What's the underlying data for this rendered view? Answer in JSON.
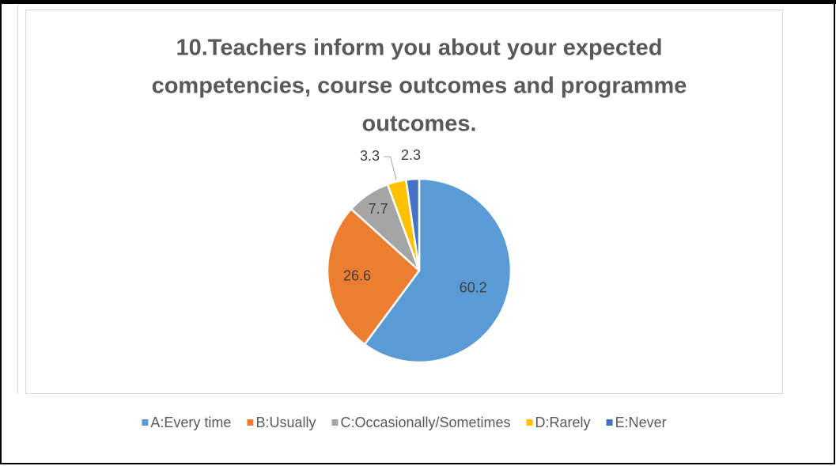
{
  "chart_data": {
    "type": "pie",
    "title": [
      "10.Teachers inform you about your expected",
      "competencies, course outcomes and programme",
      "outcomes."
    ],
    "categories": [
      "A:Every time",
      "B:Usually",
      "C:Occasionally/Sometimes",
      "D:Rarely",
      "E:Never"
    ],
    "values": [
      60.2,
      26.6,
      7.7,
      3.3,
      2.3
    ],
    "colors": [
      "#5b9bd5",
      "#ed7d31",
      "#a5a5a5",
      "#ffc000",
      "#4472c4"
    ],
    "legend": "bottom"
  }
}
